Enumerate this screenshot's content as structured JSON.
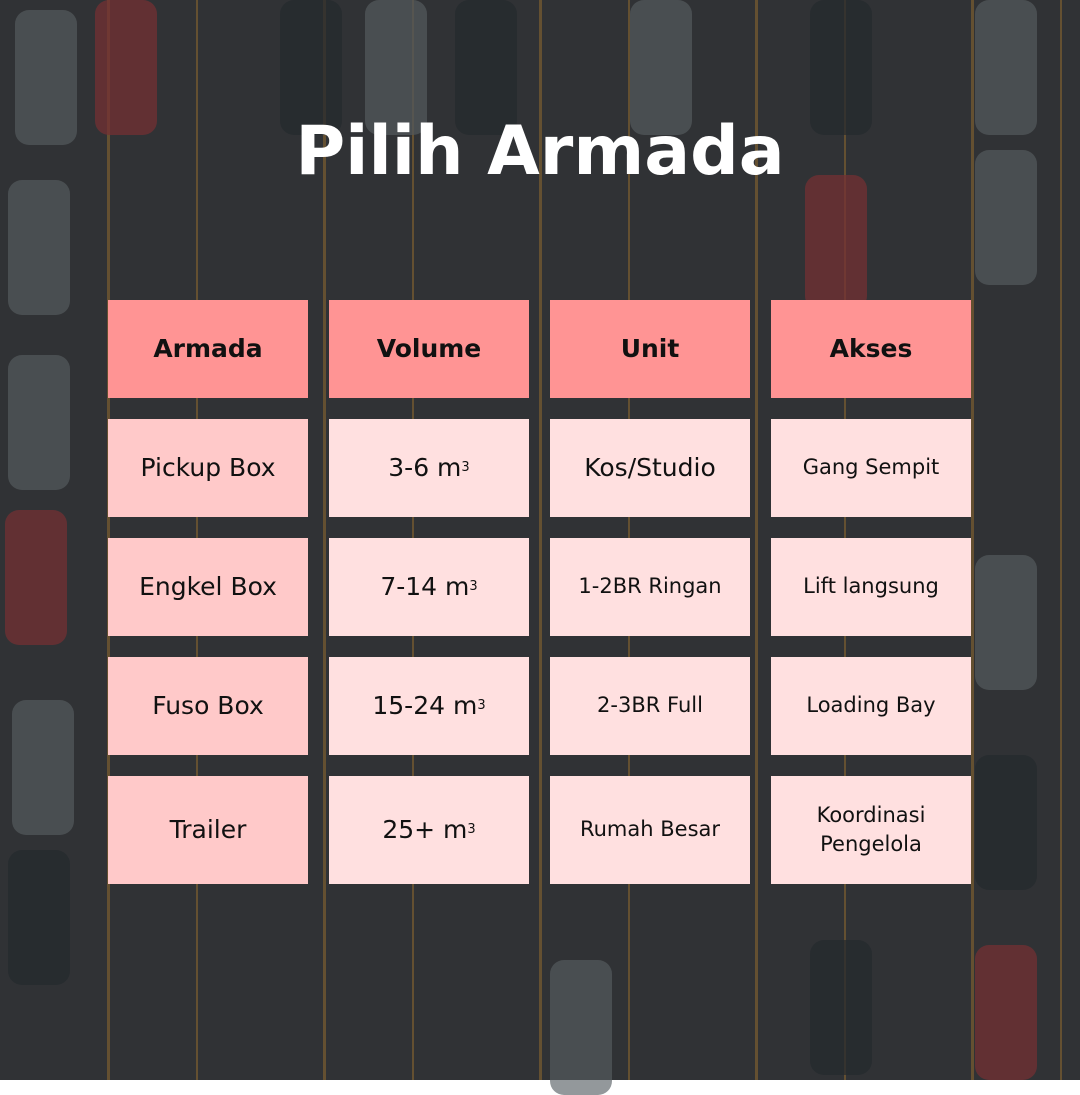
{
  "title": "Pilih Armada",
  "colors": {
    "header": "#ff9494",
    "first_column": "#ffc9c9",
    "cells": "#ffe0e0",
    "title": "#ffffff"
  },
  "table": {
    "headers": [
      "Armada",
      "Volume",
      "Unit",
      "Akses"
    ],
    "rows": [
      {
        "armada": "Pickup Box",
        "volume": "3-6 m",
        "volume_sup": "3",
        "unit": "Kos/Studio",
        "akses": "Gang Sempit"
      },
      {
        "armada": "Engkel Box",
        "volume": "7-14 m",
        "volume_sup": "3",
        "unit": "1-2BR Ringan",
        "akses": "Lift langsung"
      },
      {
        "armada": "Fuso Box",
        "volume": "15-24 m",
        "volume_sup": "3",
        "unit": "2-3BR Full",
        "akses": "Loading Bay"
      },
      {
        "armada": "Trailer",
        "volume": "25+ m",
        "volume_sup": "3",
        "unit": "Rumah Besar",
        "akses": "Koordinasi Pengelola"
      }
    ]
  }
}
